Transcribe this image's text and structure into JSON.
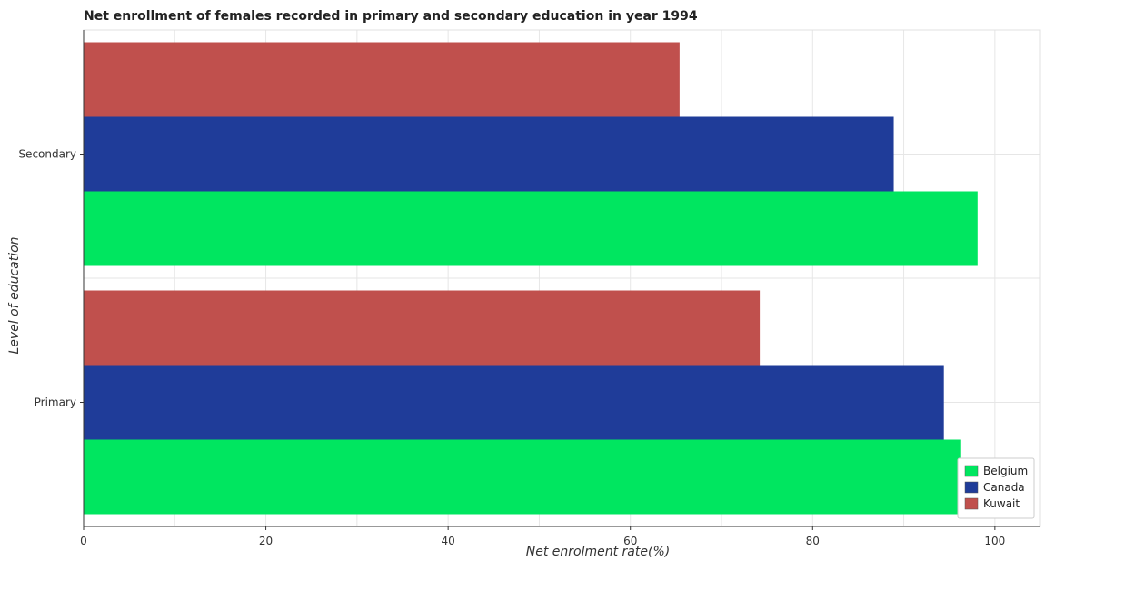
{
  "chart_data": {
    "type": "bar",
    "orientation": "horizontal",
    "title": "Net enrollment of females recorded in primary and secondary education in year 1994",
    "xlabel": "Net enrolment rate(%)",
    "ylabel": "Level of education",
    "categories": [
      "Primary",
      "Secondary"
    ],
    "series": [
      {
        "name": "Belgium",
        "color": "#00e660",
        "values": [
          96.3,
          98.1
        ]
      },
      {
        "name": "Canada",
        "color": "#1f3c99",
        "values": [
          94.4,
          88.9
        ]
      },
      {
        "name": "Kuwait",
        "color": "#c0504d",
        "values": [
          74.2,
          65.4
        ]
      }
    ],
    "xlim": [
      0,
      105
    ],
    "xticks": [
      0,
      20,
      40,
      60,
      80,
      100
    ],
    "grid": true,
    "legend_position": "bottom-right"
  }
}
